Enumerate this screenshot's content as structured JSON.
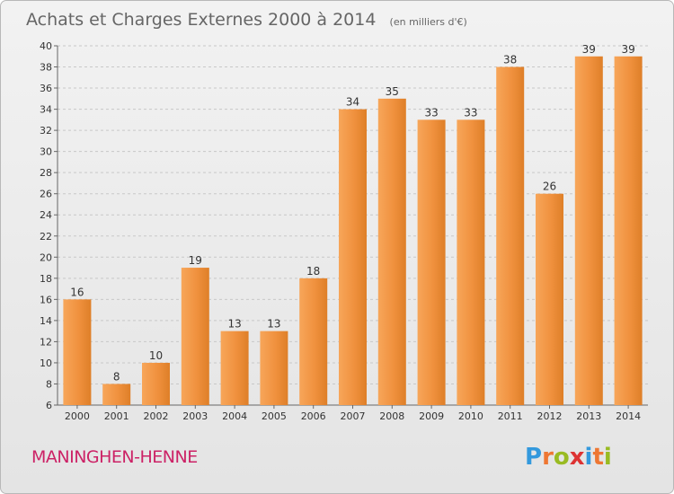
{
  "page": {
    "title": "Achats et Charges Externes 2000 à 2014",
    "unit_note": "(en milliers d'€)",
    "commune": "MANINGHEN-HENNE",
    "logo": {
      "text": "Proxiti",
      "letters": [
        {
          "char": "P",
          "color": "#3399dd"
        },
        {
          "char": "r",
          "color": "#ee7733"
        },
        {
          "char": "o",
          "color": "#99bb22"
        },
        {
          "char": "x",
          "color": "#dd3333"
        },
        {
          "char": "i",
          "color": "#3399dd"
        },
        {
          "char": "t",
          "color": "#ee7733"
        },
        {
          "char": "i",
          "color": "#99bb22"
        }
      ]
    }
  },
  "colors": {
    "bar_light": "#f7a65a",
    "bar_dark": "#de7f28",
    "commune_text": "#cc2266",
    "title_text": "#666666"
  },
  "chart_data": {
    "type": "bar",
    "title": "Achats et Charges Externes 2000 à 2014",
    "subtitle": "(en milliers d'€)",
    "categories": [
      "2000",
      "2001",
      "2002",
      "2003",
      "2004",
      "2005",
      "2006",
      "2007",
      "2008",
      "2009",
      "2010",
      "2011",
      "2012",
      "2013",
      "2014"
    ],
    "values": [
      16,
      8,
      10,
      19,
      13,
      13,
      18,
      34,
      35,
      33,
      33,
      38,
      26,
      39,
      39
    ],
    "ylim": [
      6,
      40
    ],
    "yticks": [
      6,
      8,
      10,
      12,
      14,
      16,
      18,
      20,
      22,
      24,
      26,
      28,
      30,
      32,
      34,
      36,
      38,
      40
    ],
    "grid": "horizontal dashed",
    "xlabel": "",
    "ylabel": ""
  }
}
